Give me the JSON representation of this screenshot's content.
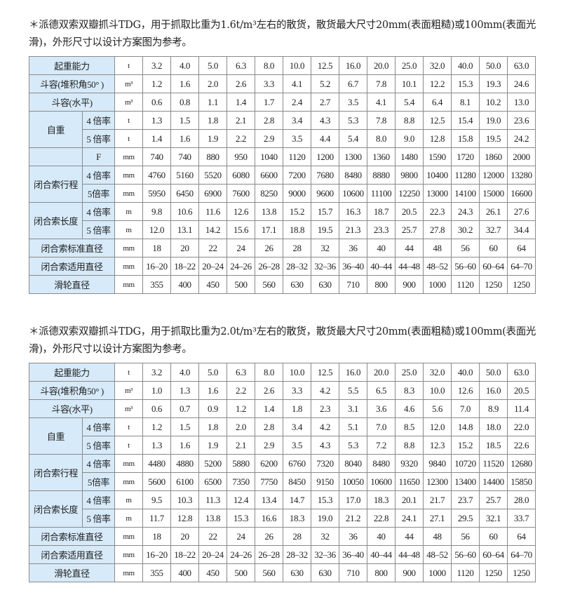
{
  "sections": [
    {
      "note": "＊派德双索双瓣抓斗TDG，用于抓取比重为1.6t/m³左右的散货，散货最大尺寸20mm(表面粗糙)或100mm(表面光滑)，外形尺寸以设计方案图为参考。",
      "rows": [
        {
          "label": "起重能力",
          "unit": "t",
          "values": [
            "3.2",
            "4.0",
            "5.0",
            "6.3",
            "8.0",
            "10.0",
            "12.5",
            "16.0",
            "20.0",
            "25.0",
            "32.0",
            "40.0",
            "50.0",
            "63.0"
          ]
        },
        {
          "label": "斗容(堆积角50°  )",
          "unit": "m³",
          "values": [
            "1.2",
            "1.6",
            "2.0",
            "2.6",
            "3.3",
            "4.1",
            "5.2",
            "6.7",
            "7.8",
            "10.1",
            "12.2",
            "15.3",
            "19.3",
            "24.6"
          ]
        },
        {
          "label": "斗容(水平)",
          "unit": "m³",
          "values": [
            "0.6",
            "0.8",
            "1.1",
            "1.4",
            "1.7",
            "2.4",
            "2.7",
            "3.5",
            "4.1",
            "5.4",
            "6.4",
            "8.1",
            "10.2",
            "13.0"
          ]
        },
        {
          "group": "自重",
          "sub": "4 倍率",
          "unit": "t",
          "span": 2,
          "values": [
            "1.3",
            "1.5",
            "1.8",
            "2.1",
            "2.8",
            "3.4",
            "4.3",
            "5.3",
            "7.8",
            "8.8",
            "12.5",
            "15.4",
            "19.0",
            "23.6"
          ]
        },
        {
          "sub": "5 倍率",
          "unit": "t",
          "values": [
            "1.4",
            "1.6",
            "1.9",
            "2.2",
            "2.9",
            "3.5",
            "4.4",
            "5.4",
            "8.0",
            "9.0",
            "12.8",
            "15.8",
            "19.5",
            "24.2"
          ]
        },
        {
          "group": "",
          "sub": "F",
          "unit": "mm",
          "span": 1,
          "values": [
            "740",
            "740",
            "880",
            "950",
            "1040",
            "1120",
            "1200",
            "1300",
            "1360",
            "1480",
            "1590",
            "1720",
            "1860",
            "2000"
          ]
        },
        {
          "group": "闭合索行程",
          "sub": "4 倍率",
          "unit": "mm",
          "span": 2,
          "values": [
            "4760",
            "5160",
            "5520",
            "6080",
            "6600",
            "7200",
            "7680",
            "8480",
            "8880",
            "9800",
            "10400",
            "11280",
            "12000",
            "13280"
          ]
        },
        {
          "sub": "5倍率",
          "unit": "mm",
          "values": [
            "5950",
            "6450",
            "6900",
            "7600",
            "8250",
            "9000",
            "9600",
            "10600",
            "11100",
            "12250",
            "13000",
            "14100",
            "15000",
            "16600"
          ]
        },
        {
          "group": "闭合索长度",
          "sub": "4 倍率",
          "unit": "m",
          "span": 2,
          "values": [
            "9.8",
            "10.6",
            "11.6",
            "12.6",
            "13.8",
            "15.2",
            "15.7",
            "16.3",
            "18.7",
            "20.5",
            "22.3",
            "24.3",
            "26.1",
            "27.6"
          ]
        },
        {
          "sub": "5 倍率",
          "unit": "m",
          "values": [
            "12.0",
            "13.1",
            "14.2",
            "15.6",
            "17.1",
            "18.8",
            "19.5",
            "21.3",
            "23.3",
            "25.7",
            "27.8",
            "30.2",
            "32.7",
            "34.4"
          ]
        },
        {
          "label": "闭合索标准直径",
          "unit": "mm",
          "values": [
            "18",
            "20",
            "22",
            "24",
            "26",
            "28",
            "32",
            "36",
            "40",
            "44",
            "48",
            "56",
            "60",
            "64"
          ]
        },
        {
          "label": "闭合索适用直径",
          "unit": "mm",
          "values": [
            "16–20",
            "18–22",
            "20–24",
            "24–26",
            "26–28",
            "28–32",
            "32–36",
            "36–40",
            "40–44",
            "44–48",
            "48–52",
            "56–60",
            "60–64",
            "64–70"
          ]
        },
        {
          "label": "滑轮直径",
          "unit": "mm",
          "values": [
            "355",
            "400",
            "450",
            "500",
            "560",
            "630",
            "630",
            "710",
            "800",
            "900",
            "1000",
            "1120",
            "1250",
            "1250"
          ]
        }
      ]
    },
    {
      "note": "＊派德双索双瓣抓斗TDG，用于抓取比重为2.0t/m³左右的散货，散货最大尺寸20mm(表面粗糙)或100mm(表面光滑)，外形尺寸以设计方案图为参考。",
      "rows": [
        {
          "label": "起重能力",
          "unit": "t",
          "values": [
            "3.2",
            "4.0",
            "5.0",
            "6.3",
            "8.0",
            "10.0",
            "12.5",
            "16.0",
            "20.0",
            "25.0",
            "32.0",
            "40.0",
            "50.0",
            "63.0"
          ]
        },
        {
          "label": "斗容(堆积角50°  )",
          "unit": "m³",
          "values": [
            "1.0",
            "1.3",
            "1.6",
            "2.2",
            "2.6",
            "3.3",
            "4.2",
            "5.5",
            "6.5",
            "8.3",
            "10.0",
            "12.6",
            "16.0",
            "20.5"
          ]
        },
        {
          "label": "斗容(水平)",
          "unit": "m³",
          "values": [
            "0.6",
            "0.7",
            "0.9",
            "1.2",
            "1.4",
            "1.8",
            "2.3",
            "3.1",
            "3.6",
            "4.6",
            "5.6",
            "7.0",
            "8.9",
            "11.4"
          ]
        },
        {
          "group": "自重",
          "sub": "4 倍率",
          "unit": "t",
          "span": 2,
          "values": [
            "1.2",
            "1.5",
            "1.8",
            "2.0",
            "2.8",
            "3.4",
            "4.2",
            "5.1",
            "7.0",
            "8.5",
            "12.0",
            "14.8",
            "18.0",
            "22.0"
          ]
        },
        {
          "sub": "5 倍率",
          "unit": "t",
          "values": [
            "1.3",
            "1.6",
            "1.9",
            "2.1",
            "2.9",
            "3.5",
            "4.3",
            "5.3",
            "7.2",
            "8.8",
            "12.3",
            "15.2",
            "18.5",
            "22.6"
          ]
        },
        {
          "group": "闭合索行程",
          "sub": "4 倍率",
          "unit": "mm",
          "span": 2,
          "values": [
            "4480",
            "4880",
            "5200",
            "5880",
            "6200",
            "6760",
            "7320",
            "8040",
            "8480",
            "9320",
            "9840",
            "10720",
            "11520",
            "12680"
          ]
        },
        {
          "sub": "5倍率",
          "unit": "mm",
          "values": [
            "5600",
            "6100",
            "6500",
            "7350",
            "7750",
            "8450",
            "9150",
            "10050",
            "10600",
            "11650",
            "12300",
            "13400",
            "14400",
            "15850"
          ]
        },
        {
          "group": "闭合索长度",
          "sub": "4 倍率",
          "unit": "m",
          "span": 2,
          "values": [
            "9.5",
            "10.3",
            "11.3",
            "12.4",
            "13.4",
            "14.7",
            "15.3",
            "17.0",
            "18.3",
            "20.1",
            "21.7",
            "23.7",
            "25.7",
            "28.0"
          ]
        },
        {
          "sub": "5 倍率",
          "unit": "m",
          "values": [
            "11.7",
            "12.8",
            "13.8",
            "15.3",
            "16.6",
            "18.3",
            "19.0",
            "21.2",
            "22.8",
            "24.1",
            "27.1",
            "29.5",
            "32.1",
            "33.7"
          ]
        },
        {
          "label": "闭合索标准直径",
          "unit": "mm",
          "values": [
            "18",
            "20",
            "22",
            "24",
            "26",
            "28",
            "32",
            "36",
            "40",
            "44",
            "48",
            "56",
            "60",
            "64"
          ]
        },
        {
          "label": "闭合索适用直径",
          "unit": "mm",
          "values": [
            "16–20",
            "18–22",
            "20–24",
            "24–26",
            "26–28",
            "28–32",
            "32–36",
            "36–40",
            "40–44",
            "44–48",
            "48–52",
            "56–60",
            "60–64",
            "64–70"
          ]
        },
        {
          "label": "滑轮直径",
          "unit": "mm",
          "values": [
            "355",
            "400",
            "450",
            "500",
            "560",
            "630",
            "630",
            "710",
            "800",
            "900",
            "1000",
            "1120",
            "1250",
            "1250"
          ]
        }
      ]
    }
  ],
  "colors": {
    "label_bg": "#d7eaf9",
    "border": "#8a8a8a"
  }
}
